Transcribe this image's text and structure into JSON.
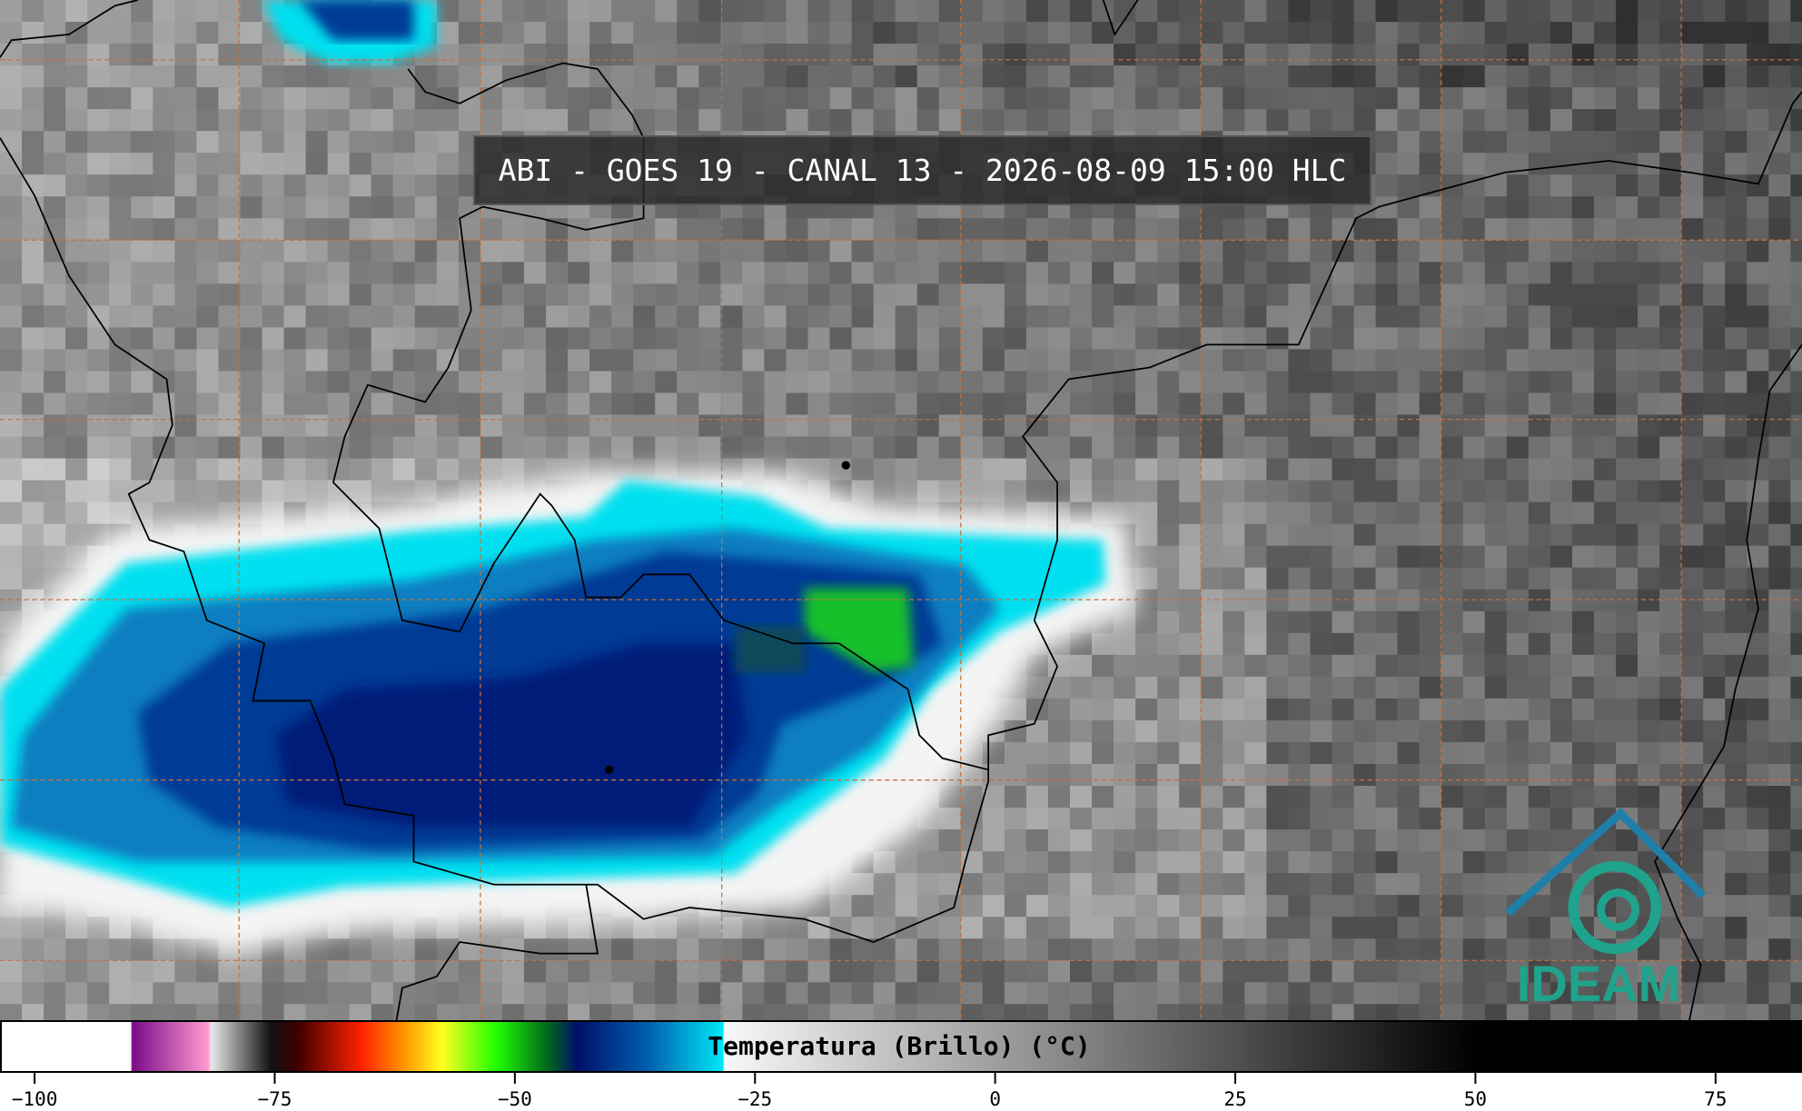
{
  "title": "ABI - GOES 19 - CANAL 13 - 2026-08-09 15:00 HLC",
  "logo": "IDEAM",
  "colorbar": {
    "label": "Temperatura (Brillo) (°C)",
    "lim": [
      -103.6,
      84
    ],
    "ticks": [
      {
        "value": -100,
        "label": "−100"
      },
      {
        "value": -75,
        "label": "−75"
      },
      {
        "value": -50,
        "label": "−50"
      },
      {
        "value": -25,
        "label": "−25"
      },
      0,
      25,
      50,
      75
    ]
  }
}
